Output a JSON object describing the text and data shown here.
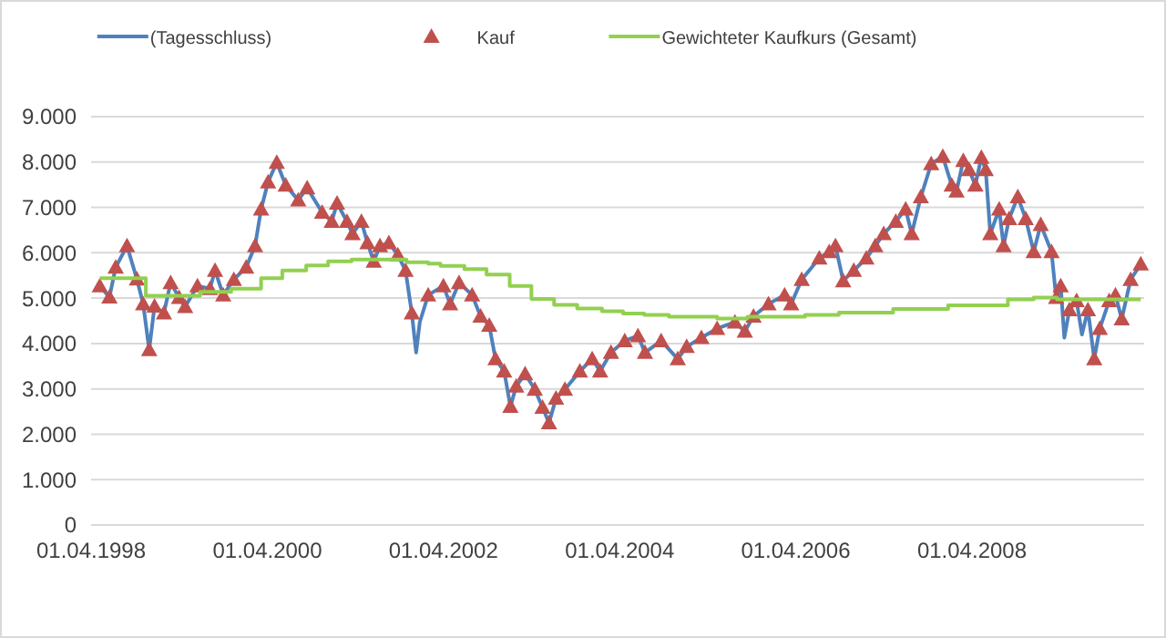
{
  "chart_data": {
    "type": "line",
    "legend": "top",
    "grid": "y",
    "xlim": [
      "1998-04-01",
      "2010-03-16"
    ],
    "xticks": [
      {
        "value": "1998-04-01",
        "label": "01.04.1998"
      },
      {
        "value": "2000-04-01",
        "label": "01.04.2000"
      },
      {
        "value": "2002-04-01",
        "label": "01.04.2002"
      },
      {
        "value": "2004-04-01",
        "label": "01.04.2004"
      },
      {
        "value": "2006-04-01",
        "label": "01.04.2006"
      },
      {
        "value": "2008-04-01",
        "label": "01.04.2008"
      }
    ],
    "ylim": [
      0,
      9000
    ],
    "yticks": [
      0,
      {
        "value": 1000,
        "label": "1.000"
      },
      {
        "value": 2000,
        "label": "2.000"
      },
      {
        "value": 3000,
        "label": "3.000"
      },
      {
        "value": 4000,
        "label": "4.000"
      },
      {
        "value": 5000,
        "label": "5.000"
      },
      {
        "value": 6000,
        "label": "6.000"
      },
      {
        "value": 7000,
        "label": "7.000"
      },
      {
        "value": 8000,
        "label": "8.000"
      },
      {
        "value": 9000,
        "label": "9.000"
      }
    ],
    "series": [
      {
        "name": "(Tagesschluss)",
        "color": "#4f81bd",
        "marker": "none",
        "x": [
          "1998-05-07",
          "1998-06-16",
          "1998-07-12",
          "1998-08-28",
          "1998-10-08",
          "1998-11-03",
          "1998-11-28",
          "1998-12-20",
          "1999-01-28",
          "1999-02-25",
          "1999-04-01",
          "1999-04-26",
          "1999-06-16",
          "1999-08-07",
          "1999-08-28",
          "1999-10-01",
          "1999-11-14",
          "2000-01-04",
          "2000-02-10",
          "2000-03-06",
          "2000-04-04",
          "2000-05-10",
          "2000-06-16",
          "2000-08-07",
          "2000-09-13",
          "2000-11-14",
          "2000-12-24",
          "2001-01-15",
          "2001-02-25",
          "2001-03-20",
          "2001-04-26",
          "2001-05-21",
          "2001-06-16",
          "2001-07-12",
          "2001-08-18",
          "2001-09-24",
          "2001-10-26",
          "2001-11-21",
          "2001-12-09",
          "2001-12-24",
          "2002-01-28",
          "2002-04-01",
          "2002-04-29",
          "2002-06-05",
          "2002-07-29",
          "2002-09-02",
          "2002-10-08",
          "2002-11-03",
          "2002-12-09",
          "2003-01-04",
          "2003-01-28",
          "2003-03-06",
          "2003-04-15",
          "2003-05-17",
          "2003-06-13",
          "2003-07-12",
          "2003-08-18",
          "2003-10-19",
          "2003-12-09",
          "2004-01-11",
          "2004-02-25",
          "2004-04-22",
          "2004-06-16",
          "2004-07-15",
          "2004-09-20",
          "2004-11-28",
          "2005-01-04",
          "2005-03-06",
          "2005-05-10",
          "2005-07-23",
          "2005-09-02",
          "2005-10-08",
          "2005-12-09",
          "2006-02-14",
          "2006-03-13",
          "2006-04-26",
          "2006-07-08",
          "2006-08-18",
          "2006-09-13",
          "2006-10-15",
          "2006-11-28",
          "2007-01-19",
          "2007-02-25",
          "2007-04-01",
          "2007-05-21",
          "2007-07-01",
          "2007-07-26",
          "2007-09-02",
          "2007-10-15",
          "2007-12-02",
          "2008-01-08",
          "2008-01-28",
          "2008-02-25",
          "2008-03-20",
          "2008-04-15",
          "2008-05-10",
          "2008-05-28",
          "2008-06-16",
          "2008-07-23",
          "2008-08-10",
          "2008-09-02",
          "2008-10-08",
          "2008-11-10",
          "2008-12-13",
          "2009-01-11",
          "2009-02-25",
          "2009-03-16",
          "2009-04-04",
          "2009-04-19",
          "2009-05-10",
          "2009-06-09",
          "2009-07-01",
          "2009-07-26",
          "2009-08-21",
          "2009-09-13",
          "2009-10-22",
          "2009-11-17",
          "2009-12-13",
          "2010-01-19",
          "2010-03-02"
        ],
        "values": [
          5270,
          5020,
          5680,
          6150,
          5420,
          4870,
          3860,
          4820,
          4670,
          5340,
          5010,
          4810,
          5270,
          5210,
          5610,
          5070,
          5410,
          5680,
          6150,
          6960,
          7560,
          7990,
          7490,
          7160,
          7430,
          6890,
          6690,
          7090,
          6690,
          6420,
          6690,
          6220,
          5810,
          6150,
          6220,
          5950,
          5610,
          4670,
          3800,
          4470,
          5070,
          5270,
          4870,
          5340,
          5070,
          4600,
          4400,
          3660,
          3390,
          2610,
          3060,
          3330,
          2990,
          2590,
          2250,
          2790,
          2990,
          3390,
          3660,
          3390,
          3800,
          4060,
          4170,
          3800,
          4060,
          3660,
          3930,
          4130,
          4330,
          4470,
          4270,
          4600,
          4870,
          5070,
          4870,
          5410,
          5880,
          6020,
          6150,
          5380,
          5610,
          5880,
          6150,
          6420,
          6690,
          6960,
          6420,
          7230,
          7960,
          8120,
          7490,
          7360,
          8030,
          7830,
          7490,
          8100,
          7830,
          6420,
          6960,
          6150,
          6750,
          7230,
          6750,
          6020,
          6620,
          6020,
          5010,
          5270,
          4130,
          4740,
          4940,
          4200,
          4740,
          3660,
          4330,
          4940,
          5070,
          4540,
          5410,
          5750
        ]
      },
      {
        "name": "Kauf",
        "type": "scatter",
        "color": "#c0504d",
        "marker": "triangle",
        "x": [
          "1998-05-07",
          "1998-06-16",
          "1998-07-12",
          "1998-08-28",
          "1998-10-08",
          "1998-11-03",
          "1998-11-28",
          "1998-12-20",
          "1999-01-28",
          "1999-02-25",
          "1999-04-01",
          "1999-04-26",
          "1999-06-16",
          "1999-08-07",
          "1999-08-28",
          "1999-10-01",
          "1999-11-14",
          "2000-01-04",
          "2000-02-10",
          "2000-03-06",
          "2000-04-04",
          "2000-05-10",
          "2000-06-16",
          "2000-08-07",
          "2000-09-13",
          "2000-11-14",
          "2000-12-24",
          "2001-01-15",
          "2001-02-25",
          "2001-03-20",
          "2001-04-26",
          "2001-05-21",
          "2001-06-16",
          "2001-07-12",
          "2001-08-18",
          "2001-09-24",
          "2001-10-26",
          "2001-11-21",
          "2002-01-28",
          "2002-04-01",
          "2002-04-29",
          "2002-06-05",
          "2002-07-29",
          "2002-09-02",
          "2002-10-08",
          "2002-11-03",
          "2002-12-09",
          "2003-01-04",
          "2003-01-28",
          "2003-03-06",
          "2003-04-15",
          "2003-05-17",
          "2003-06-13",
          "2003-07-12",
          "2003-08-18",
          "2003-10-19",
          "2003-12-09",
          "2004-01-11",
          "2004-02-25",
          "2004-04-22",
          "2004-06-16",
          "2004-07-15",
          "2004-09-20",
          "2004-11-28",
          "2005-01-04",
          "2005-03-06",
          "2005-05-10",
          "2005-07-23",
          "2005-09-02",
          "2005-10-08",
          "2005-12-09",
          "2006-02-14",
          "2006-03-13",
          "2006-04-26",
          "2006-07-08",
          "2006-08-18",
          "2006-09-13",
          "2006-10-15",
          "2006-11-28",
          "2007-01-19",
          "2007-02-25",
          "2007-04-01",
          "2007-05-21",
          "2007-07-01",
          "2007-07-26",
          "2007-09-02",
          "2007-10-15",
          "2007-12-02",
          "2008-01-08",
          "2008-01-28",
          "2008-02-25",
          "2008-03-20",
          "2008-04-15",
          "2008-05-10",
          "2008-05-28",
          "2008-06-16",
          "2008-07-23",
          "2008-08-10",
          "2008-09-02",
          "2008-10-08",
          "2008-11-10",
          "2008-12-13",
          "2009-01-11",
          "2009-02-25",
          "2009-03-16",
          "2009-04-04",
          "2009-05-10",
          "2009-06-09",
          "2009-07-26",
          "2009-08-21",
          "2009-09-13",
          "2009-10-22",
          "2009-11-17",
          "2009-12-13",
          "2010-01-19",
          "2010-03-02"
        ],
        "values": [
          5270,
          5020,
          5680,
          6150,
          5420,
          4870,
          3860,
          4820,
          4670,
          5340,
          5010,
          4810,
          5270,
          5210,
          5610,
          5070,
          5410,
          5680,
          6150,
          6960,
          7560,
          7990,
          7490,
          7160,
          7430,
          6890,
          6690,
          7090,
          6690,
          6420,
          6690,
          6220,
          5810,
          6150,
          6220,
          5950,
          5610,
          4670,
          5070,
          5270,
          4870,
          5340,
          5070,
          4600,
          4400,
          3660,
          3390,
          2610,
          3060,
          3330,
          2990,
          2590,
          2250,
          2790,
          2990,
          3390,
          3660,
          3390,
          3800,
          4060,
          4170,
          3800,
          4060,
          3660,
          3930,
          4130,
          4330,
          4470,
          4270,
          4600,
          4870,
          5070,
          4870,
          5410,
          5880,
          6020,
          6150,
          5380,
          5610,
          5880,
          6150,
          6420,
          6690,
          6960,
          6420,
          7230,
          7960,
          8120,
          7490,
          7360,
          8030,
          7830,
          7490,
          8100,
          7830,
          6420,
          6960,
          6150,
          6750,
          7230,
          6750,
          6020,
          6620,
          6020,
          5010,
          5270,
          4740,
          4940,
          4740,
          3660,
          4330,
          4940,
          5070,
          4540,
          5410,
          5750
        ]
      },
      {
        "name": "Gewichteter Kaufkurs (Gesamt)",
        "type": "step",
        "color": "#92d050",
        "marker": "none",
        "x": [
          "1998-05-07",
          "1998-11-14",
          "1999-06-27",
          "1999-11-03",
          "2000-03-06",
          "2000-06-02",
          "2000-09-09",
          "2000-12-09",
          "2001-03-16",
          "2001-10-30",
          "2002-01-28",
          "2002-03-20",
          "2002-06-27",
          "2002-09-27",
          "2003-01-01",
          "2003-04-01",
          "2003-07-04",
          "2003-10-08",
          "2004-01-19",
          "2004-04-15",
          "2004-07-12",
          "2004-10-22",
          "2005-05-10",
          "2005-09-13",
          "2006-05-10",
          "2006-09-27",
          "2007-05-10",
          "2007-12-24",
          "2008-08-28",
          "2008-12-13",
          "2009-03-20",
          "2010-03-02"
        ],
        "values": [
          5440,
          5050,
          5140,
          5210,
          5440,
          5610,
          5720,
          5810,
          5850,
          5790,
          5760,
          5710,
          5640,
          5520,
          5270,
          4980,
          4850,
          4770,
          4710,
          4660,
          4630,
          4590,
          4550,
          4590,
          4630,
          4680,
          4760,
          4840,
          4970,
          5010,
          4970,
          4970
        ]
      }
    ]
  }
}
